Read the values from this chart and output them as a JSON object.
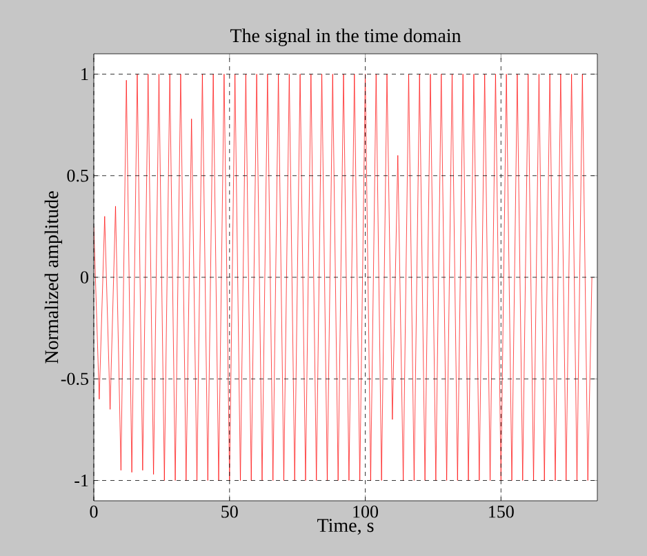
{
  "chart_data": {
    "type": "line",
    "title": "The signal in the time domain",
    "xlabel": "Time, s",
    "ylabel": "Normalized amplitude",
    "x": [
      0,
      2,
      4,
      6,
      8,
      10,
      12,
      14,
      16,
      18,
      20,
      22,
      24,
      26,
      28,
      30,
      32,
      34,
      36,
      38,
      40,
      42,
      44,
      46,
      48,
      50,
      52,
      54,
      56,
      58,
      60,
      62,
      64,
      66,
      68,
      70,
      72,
      74,
      76,
      78,
      80,
      82,
      84,
      86,
      88,
      90,
      92,
      94,
      96,
      98,
      100,
      102,
      104,
      106,
      108,
      110,
      112,
      114,
      116,
      118,
      120,
      122,
      124,
      126,
      128,
      130,
      132,
      134,
      136,
      138,
      140,
      142,
      144,
      146,
      148,
      150,
      152,
      154,
      156,
      158,
      160,
      162,
      164,
      166,
      168,
      170,
      172,
      174,
      176,
      178,
      180,
      182,
      183.5
    ],
    "series": [
      {
        "color": "#ff0000",
        "values": [
          0.25,
          -0.6,
          0.3,
          -0.65,
          0.35,
          -0.95,
          0.97,
          -0.96,
          1,
          -0.95,
          1,
          -0.97,
          1,
          -1,
          1,
          -1,
          1,
          -1,
          0.78,
          -1,
          1,
          -1,
          1,
          -1,
          1,
          -1,
          1,
          -1,
          1,
          -1,
          1,
          -1,
          1,
          -1,
          1,
          -1,
          1,
          -1,
          1,
          -1,
          1,
          -1,
          1,
          -1,
          1,
          -1,
          1,
          -1,
          1,
          -1,
          1,
          -1,
          1,
          -1,
          1,
          -0.7,
          0.6,
          -1,
          1,
          -1,
          1,
          -1,
          1,
          -1,
          1,
          -1,
          1,
          -1,
          1,
          -1,
          1,
          -1,
          1,
          -1,
          1,
          -1,
          1,
          -1,
          1,
          -1,
          1,
          -1,
          1,
          -1,
          1,
          -1,
          1,
          -1,
          1,
          -1,
          1,
          -1,
          0
        ]
      }
    ],
    "xlim": [
      0,
      185.5
    ],
    "ylim": [
      -1.1,
      1.1
    ],
    "xticks": [
      0,
      50,
      100,
      150
    ],
    "yticks": [
      -1,
      -0.5,
      0,
      0.5,
      1
    ],
    "grid": true,
    "line_style": "solid",
    "marker": "none"
  }
}
